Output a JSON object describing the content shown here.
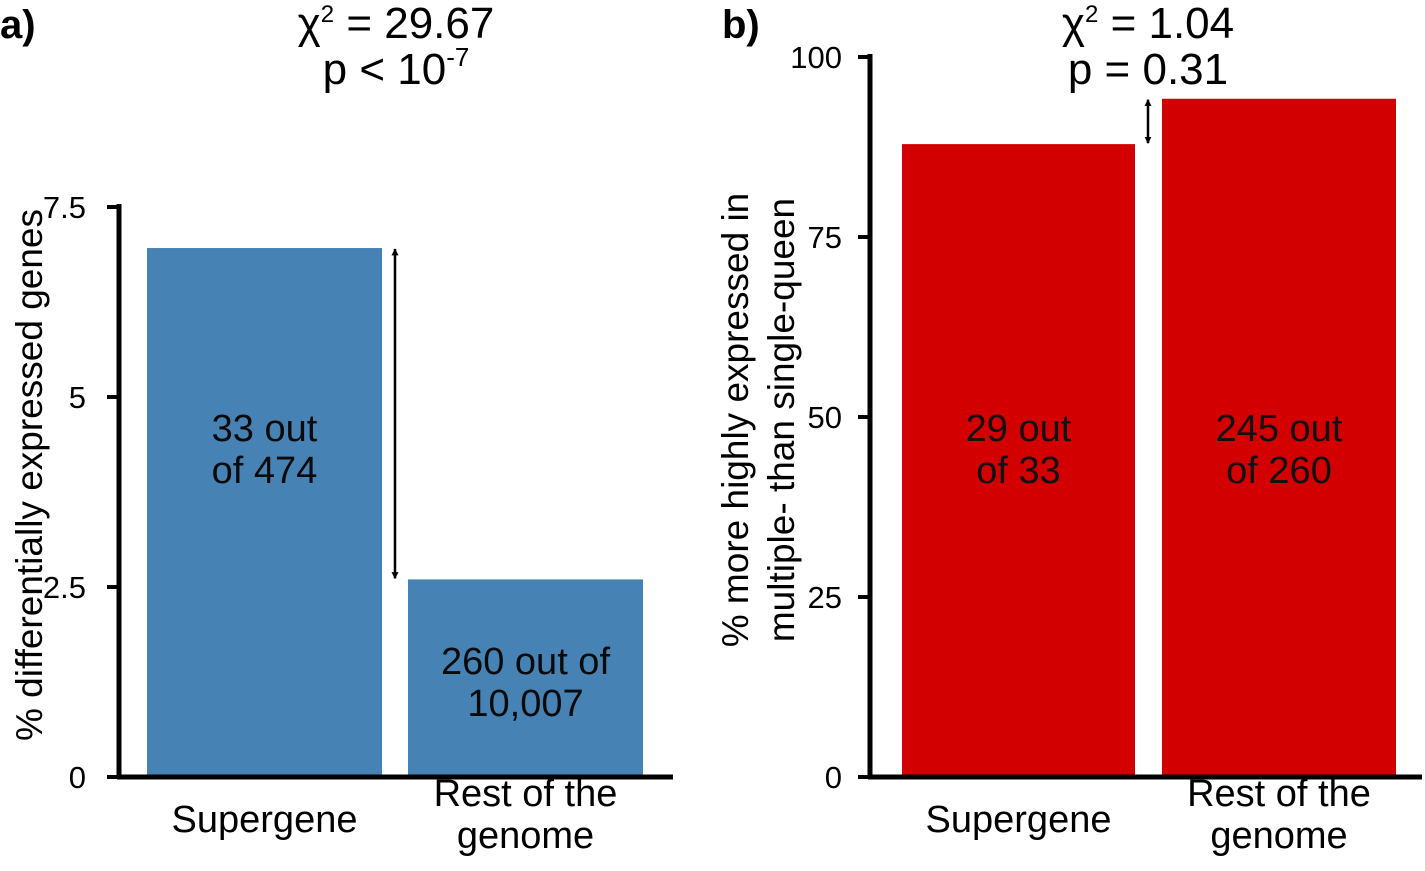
{
  "chart_data": [
    {
      "type": "bar",
      "panel_label": "a)",
      "stat_label": "χ² = 29.67",
      "stat": {
        "symbol": "χ",
        "exponent": "2",
        "value": "= 29.67"
      },
      "p_label": "p < 10⁻⁷",
      "p_value": {
        "text": "p < 10",
        "exponent": "-7"
      },
      "ylabel": "% differentially expressed genes",
      "ylim": [
        0,
        7.5
      ],
      "yticks": [
        0,
        2.5,
        5,
        7.5
      ],
      "ytick_labels": [
        "0",
        "2.5",
        "5",
        "7.5"
      ],
      "categories": [
        "Supergene",
        "Rest of the genome"
      ],
      "category_lines": [
        [
          "Supergene"
        ],
        [
          "Rest of the",
          "genome"
        ]
      ],
      "values": [
        6.96,
        2.6
      ],
      "bar_labels": [
        [
          "33 out",
          "of 474"
        ],
        [
          "260 out of",
          "10,007"
        ]
      ],
      "color": "#4682b4",
      "comparison_arrow": true
    },
    {
      "type": "bar",
      "panel_label": "b)",
      "stat_label": "χ² = 1.04",
      "stat": {
        "symbol": "χ",
        "exponent": "2",
        "value": "= 1.04"
      },
      "p_label": "p = 0.31",
      "p_value": {
        "text": "p = 0.31",
        "exponent": ""
      },
      "ylabel": [
        "% more highly expressed in",
        "multiple- than single-queen"
      ],
      "ylim": [
        0,
        100
      ],
      "yticks": [
        0,
        25,
        50,
        75,
        100
      ],
      "ytick_labels": [
        "0",
        "25",
        "50",
        "75",
        "100"
      ],
      "categories": [
        "Supergene",
        "Rest of the genome"
      ],
      "category_lines": [
        [
          "Supergene"
        ],
        [
          "Rest of the",
          "genome"
        ]
      ],
      "values": [
        87.9,
        94.2
      ],
      "bar_labels": [
        [
          "29 out",
          "of 33"
        ],
        [
          "245 out",
          "of 260"
        ]
      ],
      "color": "#d20000",
      "comparison_arrow": true
    }
  ]
}
